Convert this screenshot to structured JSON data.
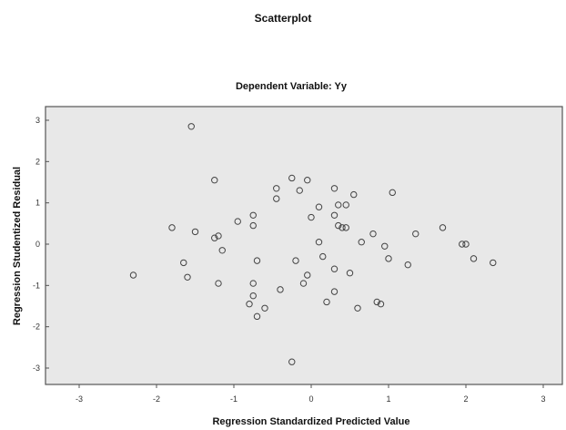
{
  "chart_data": {
    "type": "scatter",
    "title": "Scatterplot",
    "subtitle": "Dependent Variable: Yy",
    "xlabel": "Regression Standardized Predicted Value",
    "ylabel": "Regression Studentized Residual",
    "xlim": [
      -3,
      3
    ],
    "ylim": [
      -3,
      3
    ],
    "x_ticks": [
      "-3",
      "-2",
      "-1",
      "0",
      "1",
      "2",
      "3"
    ],
    "y_ticks": [
      "3",
      "2",
      "1",
      "0",
      "-1",
      "-2",
      "-3"
    ],
    "grid": false,
    "legend": "none",
    "colors": {
      "plot_background": "#e8e8e8",
      "frame": "#555555",
      "marker": "#444444"
    },
    "series": [
      {
        "points": [
          {
            "x": -1.55,
            "y": 2.85
          },
          {
            "x": -1.25,
            "y": 1.55
          },
          {
            "x": -0.45,
            "y": 1.35
          },
          {
            "x": -0.45,
            "y": 1.1
          },
          {
            "x": -0.25,
            "y": 1.6
          },
          {
            "x": -0.15,
            "y": 1.3
          },
          {
            "x": -0.05,
            "y": 1.55
          },
          {
            "x": 0.3,
            "y": 1.35
          },
          {
            "x": 0.55,
            "y": 1.2
          },
          {
            "x": 1.05,
            "y": 1.25
          },
          {
            "x": 0.1,
            "y": 0.9
          },
          {
            "x": 0.35,
            "y": 0.95
          },
          {
            "x": 0.45,
            "y": 0.95
          },
          {
            "x": 0.0,
            "y": 0.65
          },
          {
            "x": 0.3,
            "y": 0.7
          },
          {
            "x": -0.95,
            "y": 0.55
          },
          {
            "x": -0.75,
            "y": 0.7
          },
          {
            "x": -0.75,
            "y": 0.45
          },
          {
            "x": -1.8,
            "y": 0.4
          },
          {
            "x": -1.5,
            "y": 0.3
          },
          {
            "x": -1.25,
            "y": 0.15
          },
          {
            "x": -1.2,
            "y": 0.2
          },
          {
            "x": -1.15,
            "y": -0.15
          },
          {
            "x": 0.35,
            "y": 0.45
          },
          {
            "x": 0.4,
            "y": 0.4
          },
          {
            "x": 0.45,
            "y": 0.4
          },
          {
            "x": 0.8,
            "y": 0.25
          },
          {
            "x": 0.65,
            "y": 0.05
          },
          {
            "x": 0.1,
            "y": 0.05
          },
          {
            "x": 0.95,
            "y": -0.05
          },
          {
            "x": 1.35,
            "y": 0.25
          },
          {
            "x": 1.7,
            "y": 0.4
          },
          {
            "x": 1.95,
            "y": 0.0
          },
          {
            "x": 2.0,
            "y": 0.0
          },
          {
            "x": 2.1,
            "y": -0.35
          },
          {
            "x": 2.35,
            "y": -0.45
          },
          {
            "x": 1.25,
            "y": -0.5
          },
          {
            "x": 1.0,
            "y": -0.35
          },
          {
            "x": -1.65,
            "y": -0.45
          },
          {
            "x": -0.7,
            "y": -0.4
          },
          {
            "x": -0.2,
            "y": -0.4
          },
          {
            "x": 0.15,
            "y": -0.3
          },
          {
            "x": 0.3,
            "y": -0.6
          },
          {
            "x": 0.5,
            "y": -0.7
          },
          {
            "x": -2.3,
            "y": -0.75
          },
          {
            "x": -1.6,
            "y": -0.8
          },
          {
            "x": -1.2,
            "y": -0.95
          },
          {
            "x": -0.75,
            "y": -0.95
          },
          {
            "x": -0.05,
            "y": -0.75
          },
          {
            "x": -0.4,
            "y": -1.1
          },
          {
            "x": -0.1,
            "y": -0.95
          },
          {
            "x": 0.3,
            "y": -1.15
          },
          {
            "x": -0.75,
            "y": -1.25
          },
          {
            "x": -0.8,
            "y": -1.45
          },
          {
            "x": -0.6,
            "y": -1.55
          },
          {
            "x": -0.7,
            "y": -1.75
          },
          {
            "x": 0.2,
            "y": -1.4
          },
          {
            "x": 0.6,
            "y": -1.55
          },
          {
            "x": 0.85,
            "y": -1.4
          },
          {
            "x": 0.9,
            "y": -1.45
          },
          {
            "x": -0.25,
            "y": -2.85
          }
        ]
      }
    ]
  }
}
